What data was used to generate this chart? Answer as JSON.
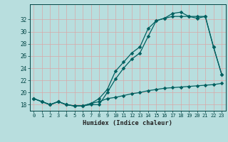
{
  "xlabel": "Humidex (Indice chaleur)",
  "background_color": "#b8dede",
  "grid_color": "#d8a8a8",
  "line_color": "#006060",
  "xlim": [
    -0.5,
    23.5
  ],
  "ylim": [
    17.0,
    34.5
  ],
  "xticks": [
    0,
    1,
    2,
    3,
    4,
    5,
    6,
    7,
    8,
    9,
    10,
    11,
    12,
    13,
    14,
    15,
    16,
    17,
    18,
    19,
    20,
    21,
    22,
    23
  ],
  "yticks": [
    18,
    20,
    22,
    24,
    26,
    28,
    30,
    32
  ],
  "line1_x": [
    0,
    1,
    2,
    3,
    4,
    5,
    6,
    7,
    8,
    9,
    10,
    11,
    12,
    13,
    14,
    15,
    16,
    17,
    18,
    19,
    20,
    21,
    22,
    23
  ],
  "line1_y": [
    19.0,
    18.5,
    18.0,
    18.5,
    18.0,
    17.8,
    17.8,
    18.0,
    18.0,
    20.0,
    22.2,
    24.0,
    25.5,
    26.5,
    29.2,
    31.8,
    32.2,
    33.0,
    33.2,
    32.5,
    32.2,
    32.5,
    27.5,
    23.0
  ],
  "line2_x": [
    0,
    1,
    2,
    3,
    4,
    5,
    6,
    7,
    8,
    9,
    10,
    11,
    12,
    13,
    14,
    15,
    16,
    17,
    18,
    19,
    20,
    21,
    22,
    23
  ],
  "line2_y": [
    19.0,
    18.5,
    18.0,
    18.5,
    18.0,
    17.8,
    17.8,
    18.2,
    19.0,
    20.5,
    23.5,
    25.0,
    26.5,
    27.5,
    30.5,
    31.8,
    32.2,
    32.5,
    32.5,
    32.5,
    32.5,
    32.5,
    27.5,
    23.0
  ],
  "line3_x": [
    0,
    1,
    2,
    3,
    4,
    5,
    6,
    7,
    8,
    9,
    10,
    11,
    12,
    13,
    14,
    15,
    16,
    17,
    18,
    19,
    20,
    21,
    22,
    23
  ],
  "line3_y": [
    19.0,
    18.5,
    18.0,
    18.5,
    18.0,
    17.8,
    17.8,
    18.2,
    18.5,
    19.0,
    19.2,
    19.5,
    19.8,
    20.0,
    20.3,
    20.5,
    20.7,
    20.8,
    20.9,
    21.0,
    21.1,
    21.2,
    21.3,
    21.5
  ]
}
